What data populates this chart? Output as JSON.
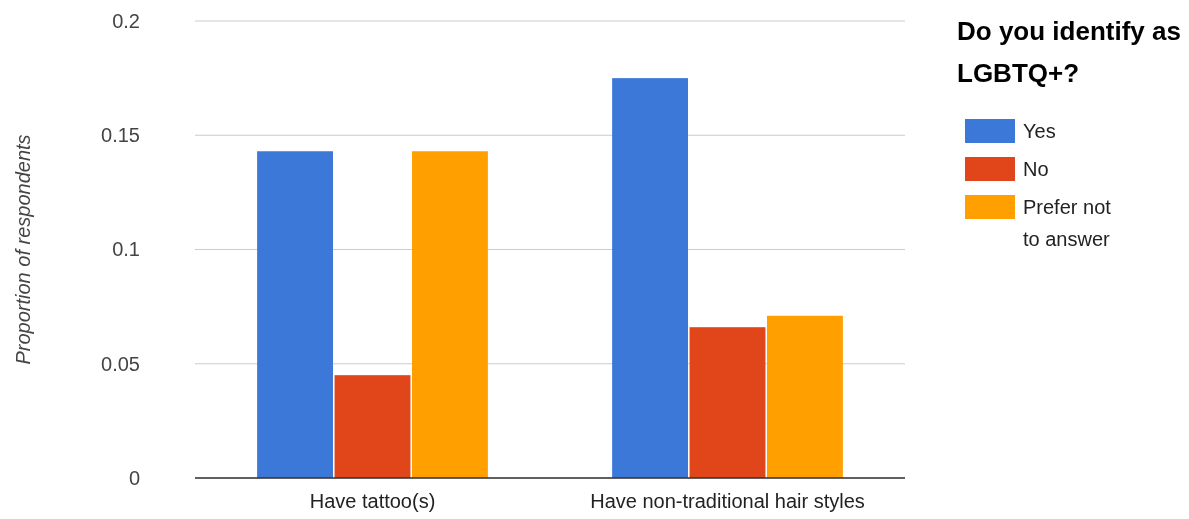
{
  "chart_data": {
    "type": "bar",
    "ylabel": "Proportion of respondents",
    "legend_title": "Do you identify as LGBTQ+?",
    "categories": [
      "Have tattoo(s)",
      "Have non-traditional hair styles"
    ],
    "series": [
      {
        "name": "Yes",
        "color": "#3c78d8",
        "values": [
          0.143,
          0.175
        ]
      },
      {
        "name": "No",
        "color": "#e0461a",
        "values": [
          0.045,
          0.066
        ]
      },
      {
        "name": "Prefer not to answer",
        "color": "#ffa000",
        "values": [
          0.143,
          0.071
        ]
      }
    ],
    "ylim": [
      0,
      0.2
    ],
    "yticks": [
      0,
      0.05,
      0.1,
      0.15,
      0.2
    ],
    "grid": true,
    "legend": "right"
  }
}
